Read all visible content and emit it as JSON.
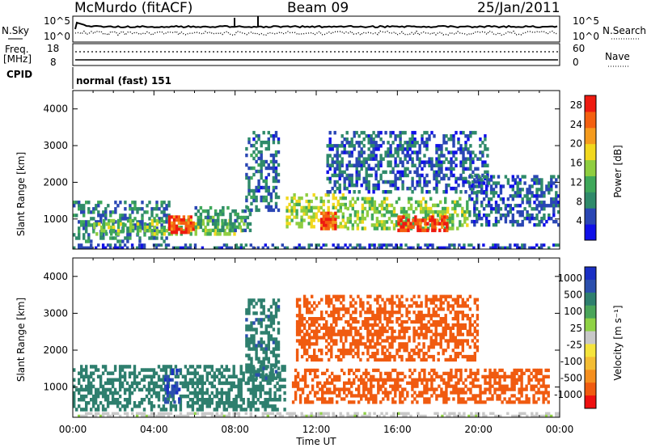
{
  "header": {
    "title": "McMurdo (fitACF)",
    "beam": "Beam 09",
    "date": "25/Jan/2011"
  },
  "status_panels": {
    "nsky_label": "N.Sky",
    "nsearch_label": "N.Search",
    "noise_ticks_left": [
      "10^5",
      "10^0"
    ],
    "noise_ticks_right": [
      "10^5",
      "10^0"
    ],
    "freq_label": "Freq.",
    "freq_unit": "[MHz]",
    "freq_ticks": [
      "18",
      "8"
    ],
    "nave_label": "Nave",
    "nave_ticks": [
      "60",
      "0"
    ],
    "cpid_label": "CPID",
    "cpid_text": "normal (fast) 151"
  },
  "colors": {
    "power_scale": [
      "#1010e8",
      "#2a46b4",
      "#2f8a6a",
      "#3fa85a",
      "#8fce40",
      "#f2d81e",
      "#f59b1e",
      "#f46010",
      "#ee1a10"
    ],
    "velocity_scale": [
      "#ee1010",
      "#f05b10",
      "#f58f1e",
      "#f4bd34",
      "#f5e43c",
      "#c8c8c8",
      "#8fd245",
      "#4aa55a",
      "#2e7f6e",
      "#2b4fad",
      "#1a2fc4"
    ]
  },
  "chart_data": [
    {
      "type": "heatmap",
      "name": "power-panel",
      "xlabel": "",
      "ylabel": "Slant Range [km]",
      "x_ticks": [
        "00:00",
        "04:00",
        "08:00",
        "12:00",
        "16:00",
        "20:00",
        "00:00"
      ],
      "xlim_hours": [
        0,
        24
      ],
      "ylim_km": [
        180,
        4500
      ],
      "y_ticks": [
        1000,
        2000,
        3000,
        4000
      ],
      "colorbar": {
        "label": "Power [dB]",
        "ticks": [
          4,
          8,
          12,
          16,
          20,
          24,
          28
        ],
        "range": [
          0,
          30
        ]
      },
      "echo_regions": [
        {
          "t0": 0.0,
          "t1": 4.8,
          "r0": 350,
          "r1": 1500,
          "level": 8
        },
        {
          "t0": 1.0,
          "t1": 8.5,
          "r0": 550,
          "r1": 1000,
          "level": 14
        },
        {
          "t0": 4.7,
          "t1": 6.0,
          "r0": 600,
          "r1": 1100,
          "level": 26
        },
        {
          "t0": 6.0,
          "t1": 8.8,
          "r0": 650,
          "r1": 1350,
          "level": 10
        },
        {
          "t0": 8.5,
          "t1": 10.2,
          "r0": 1200,
          "r1": 3400,
          "level": 7
        },
        {
          "t0": 10.5,
          "t1": 13.5,
          "r0": 750,
          "r1": 1700,
          "level": 16
        },
        {
          "t0": 12.2,
          "t1": 13.0,
          "r0": 700,
          "r1": 1200,
          "level": 26
        },
        {
          "t0": 13.5,
          "t1": 19.5,
          "r0": 700,
          "r1": 1600,
          "level": 14
        },
        {
          "t0": 16.0,
          "t1": 18.5,
          "r0": 650,
          "r1": 1100,
          "level": 27
        },
        {
          "t0": 12.5,
          "t1": 20.5,
          "r0": 1700,
          "r1": 3400,
          "level": 6
        },
        {
          "t0": 19.5,
          "t1": 24.0,
          "r0": 800,
          "r1": 2200,
          "level": 6
        },
        {
          "t0": 0.0,
          "t1": 24.0,
          "r0": 180,
          "r1": 330,
          "level": 5
        }
      ]
    },
    {
      "type": "heatmap",
      "name": "velocity-panel",
      "xlabel": "Time UT",
      "ylabel": "Slant Range [km]",
      "x_ticks": [
        "00:00",
        "04:00",
        "08:00",
        "12:00",
        "16:00",
        "20:00",
        "00:00"
      ],
      "xlim_hours": [
        0,
        24
      ],
      "ylim_km": [
        180,
        4500
      ],
      "y_ticks": [
        1000,
        2000,
        3000,
        4000
      ],
      "colorbar": {
        "label": "Velocity [m s⁻¹]",
        "ticks": [
          1000,
          500,
          100,
          25,
          -25,
          -100,
          -500,
          -1000
        ]
      },
      "echo_regions": [
        {
          "t0": 0.0,
          "t1": 10.5,
          "r0": 350,
          "r1": 1600,
          "velocity": 300
        },
        {
          "t0": 4.5,
          "t1": 5.3,
          "r0": 550,
          "r1": 1500,
          "velocity": 800
        },
        {
          "t0": 8.5,
          "t1": 10.2,
          "r0": 1200,
          "r1": 3400,
          "velocity": 400
        },
        {
          "t0": 10.8,
          "t1": 23.5,
          "r0": 550,
          "r1": 1500,
          "velocity": -300
        },
        {
          "t0": 11.0,
          "t1": 20.0,
          "r0": 1700,
          "r1": 3500,
          "velocity": -200
        },
        {
          "t0": 0.0,
          "t1": 24.0,
          "r0": 180,
          "r1": 320,
          "velocity": 20
        }
      ]
    }
  ]
}
